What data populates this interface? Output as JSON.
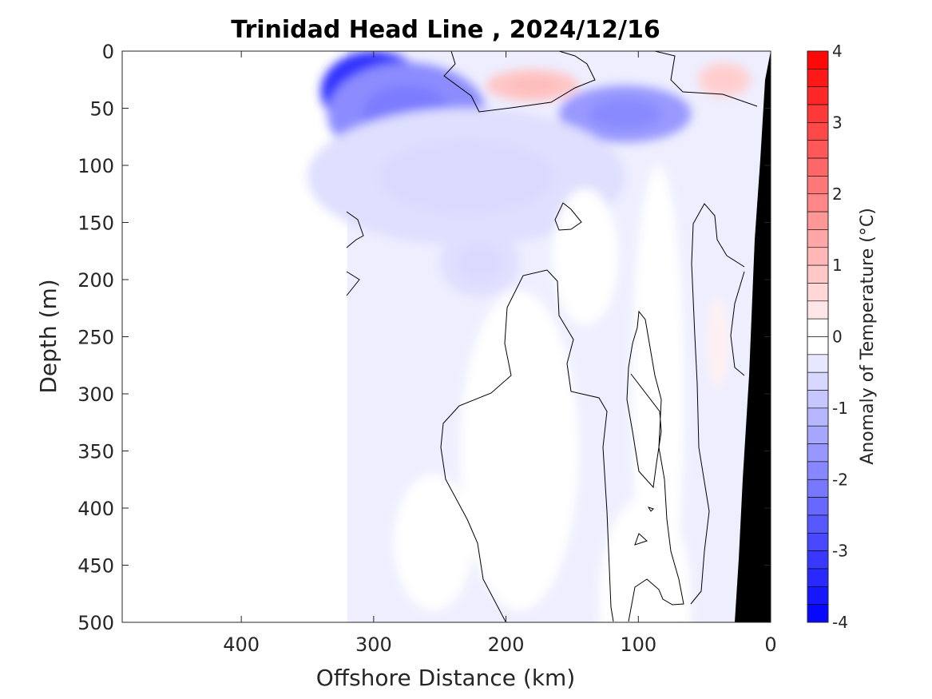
{
  "chart_data": {
    "type": "heatmap",
    "title": "Trinidad Head Line , 2024/12/16",
    "xlabel": "Offshore Distance (km)",
    "ylabel": "Depth (m)",
    "xlim": [
      490,
      0
    ],
    "ylim": [
      0,
      500
    ],
    "x_reversed": true,
    "y_reversed": true,
    "x_ticks": [
      400,
      300,
      200,
      100,
      0
    ],
    "y_ticks": [
      0,
      50,
      100,
      150,
      200,
      250,
      300,
      350,
      400,
      450,
      500
    ],
    "data_extent_km": [
      320,
      0
    ],
    "colorbar": {
      "label": "Anomaly of Temperature (°C)",
      "range": [
        -4,
        4
      ],
      "ticks": [
        4,
        3,
        2,
        1,
        0,
        -1,
        -2,
        -3,
        -4
      ],
      "levels": 32,
      "neg_color": "#0000ff",
      "pos_color": "#ff0000",
      "zero_color": "#ffffff"
    },
    "grid": false,
    "features": [
      {
        "x": 300,
        "depth": 35,
        "anomaly": -3.2,
        "rx": 40,
        "ry": 35
      },
      {
        "x": 275,
        "depth": 55,
        "anomaly": -1.8,
        "rx": 60,
        "ry": 45
      },
      {
        "x": 110,
        "depth": 55,
        "anomaly": -1.6,
        "rx": 50,
        "ry": 25
      },
      {
        "x": 230,
        "depth": 110,
        "anomaly": -0.5,
        "rx": 120,
        "ry": 60
      },
      {
        "x": 220,
        "depth": 185,
        "anomaly": -0.5,
        "rx": 30,
        "ry": 30
      },
      {
        "x": 180,
        "depth": 30,
        "anomaly": 0.9,
        "rx": 35,
        "ry": 14
      },
      {
        "x": 35,
        "depth": 25,
        "anomaly": 0.7,
        "rx": 20,
        "ry": 15
      },
      {
        "x": 190,
        "depth": 380,
        "anomaly": 0.3,
        "rx": 30,
        "ry": 60
      },
      {
        "x": 40,
        "depth": 255,
        "anomaly": 0.2,
        "rx": 8,
        "ry": 40
      }
    ]
  }
}
